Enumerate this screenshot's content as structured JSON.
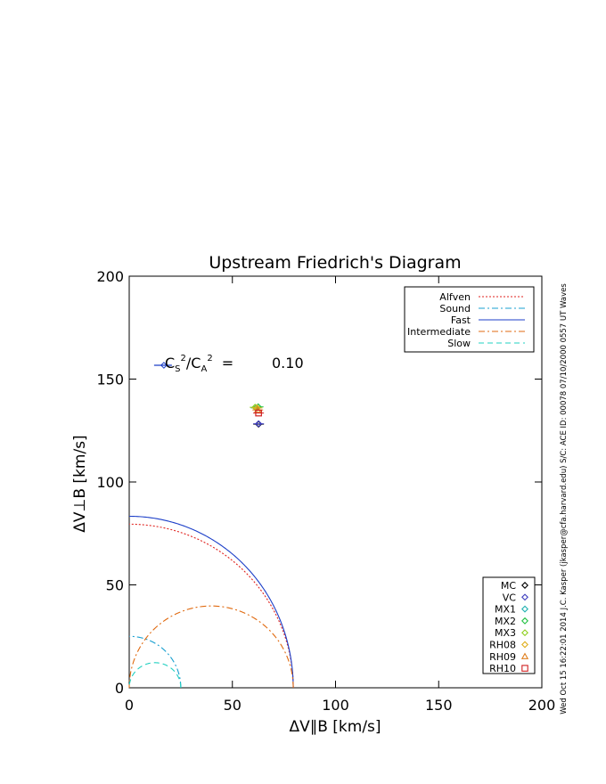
{
  "chart_data": {
    "type": "line",
    "title": "Upstream Friedrich's Diagram",
    "xlabel": "ΔV∥B [km/s]",
    "ylabel": "ΔV⊥B [km/s]",
    "xlim": [
      0,
      200
    ],
    "ylim": [
      0,
      200
    ],
    "xticks": [
      0,
      50,
      100,
      150,
      200
    ],
    "yticks": [
      0,
      50,
      100,
      150,
      200
    ],
    "ratio": {
      "lhs_base": "C",
      "s_sub": "S",
      "a_sub": "A",
      "sup": "2",
      "slash": "/",
      "eq": "=",
      "value": "0.10"
    },
    "curve_legend_position": "top-right",
    "curves": [
      {
        "name": "Alfven",
        "kind": "alfven",
        "radius": 79.5,
        "color": "#e0201c",
        "dash": "2,2"
      },
      {
        "name": "Sound",
        "kind": "sound",
        "radius": 25,
        "color": "#1aa0d0",
        "dash": "7,3,2,3"
      },
      {
        "name": "Fast",
        "kind": "fast",
        "color": "#1c3fc8",
        "dash": ""
      },
      {
        "name": "Intermediate",
        "kind": "intermediate",
        "color": "#e06a10",
        "dash": "7,3,2,3"
      },
      {
        "name": "Slow",
        "kind": "slow",
        "color": "#20d0c0",
        "dash": "6,4"
      }
    ],
    "solution_legend_position": "bottom-right",
    "solutions": [
      {
        "name": "MC",
        "marker": "diamond",
        "color": "#000000",
        "x": 62.7,
        "y": 128.1
      },
      {
        "name": "VC",
        "marker": "diamond",
        "color": "#4040c0",
        "x": 62.7,
        "y": 128.3
      },
      {
        "name": "MX1",
        "marker": "diamond",
        "color": "#20b0b0",
        "x": 61.5,
        "y": 136.0
      },
      {
        "name": "MX2",
        "marker": "diamond",
        "color": "#20c040",
        "x": 62.5,
        "y": 136.5
      },
      {
        "name": "MX3",
        "marker": "diamond",
        "color": "#90d020",
        "x": 61.0,
        "y": 136.3
      },
      {
        "name": "RH08",
        "marker": "diamond",
        "color": "#e0b020",
        "x": 62.0,
        "y": 136.0
      },
      {
        "name": "RH09",
        "marker": "triangle",
        "color": "#e08020",
        "x": 62.3,
        "y": 135.0
      },
      {
        "name": "RH10",
        "marker": "square",
        "color": "#d02020",
        "x": 62.7,
        "y": 133.5
      }
    ],
    "scale_bar": {
      "x": 16.8,
      "y": 156.7,
      "color": "#1c3fc8"
    }
  },
  "side_note": "Wed Oct 15 16:22:01 2014   J.C. Kasper (jkasper@cfa.harvard.edu)   S/C: ACE  ID: 00078  07/10/2000   0557 UT Waves"
}
